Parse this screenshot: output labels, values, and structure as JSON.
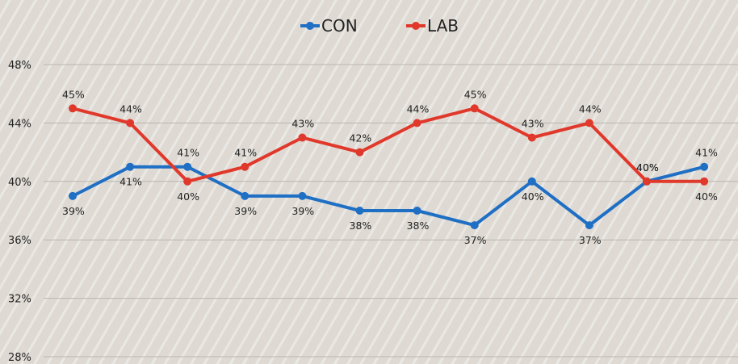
{
  "chart_data": {
    "type": "line",
    "categories": [
      "",
      "",
      "",
      "",
      "",
      "",
      "",
      "",
      "",
      "",
      "",
      ""
    ],
    "series": [
      {
        "name": "CON",
        "color": "#1f6fc5",
        "values": [
          39,
          41,
          41,
          39,
          39,
          38,
          38,
          37,
          40,
          37,
          40,
          41
        ],
        "labels": [
          "39%",
          "41%",
          "41%",
          "39%",
          "39%",
          "38%",
          "38%",
          "37%",
          "40%",
          "37%",
          "40%",
          "41%"
        ]
      },
      {
        "name": "LAB",
        "color": "#e0392c",
        "values": [
          45,
          44,
          40,
          41,
          43,
          42,
          44,
          45,
          43,
          44,
          40,
          40
        ],
        "labels": [
          "45%",
          "44%",
          "40%",
          "41%",
          "43%",
          "42%",
          "44%",
          "45%",
          "43%",
          "44%",
          "40%",
          "40%"
        ]
      }
    ],
    "ylim": [
      28,
      48
    ],
    "yticks": [
      {
        "value": 28,
        "label": "28%"
      },
      {
        "value": 32,
        "label": "32%"
      },
      {
        "value": 36,
        "label": "36%"
      },
      {
        "value": 40,
        "label": "40%"
      },
      {
        "value": 44,
        "label": "44%"
      },
      {
        "value": 48,
        "label": "48%"
      }
    ],
    "grid": true,
    "legend_position": "top-center",
    "title": "",
    "xlabel": "",
    "ylabel": ""
  }
}
